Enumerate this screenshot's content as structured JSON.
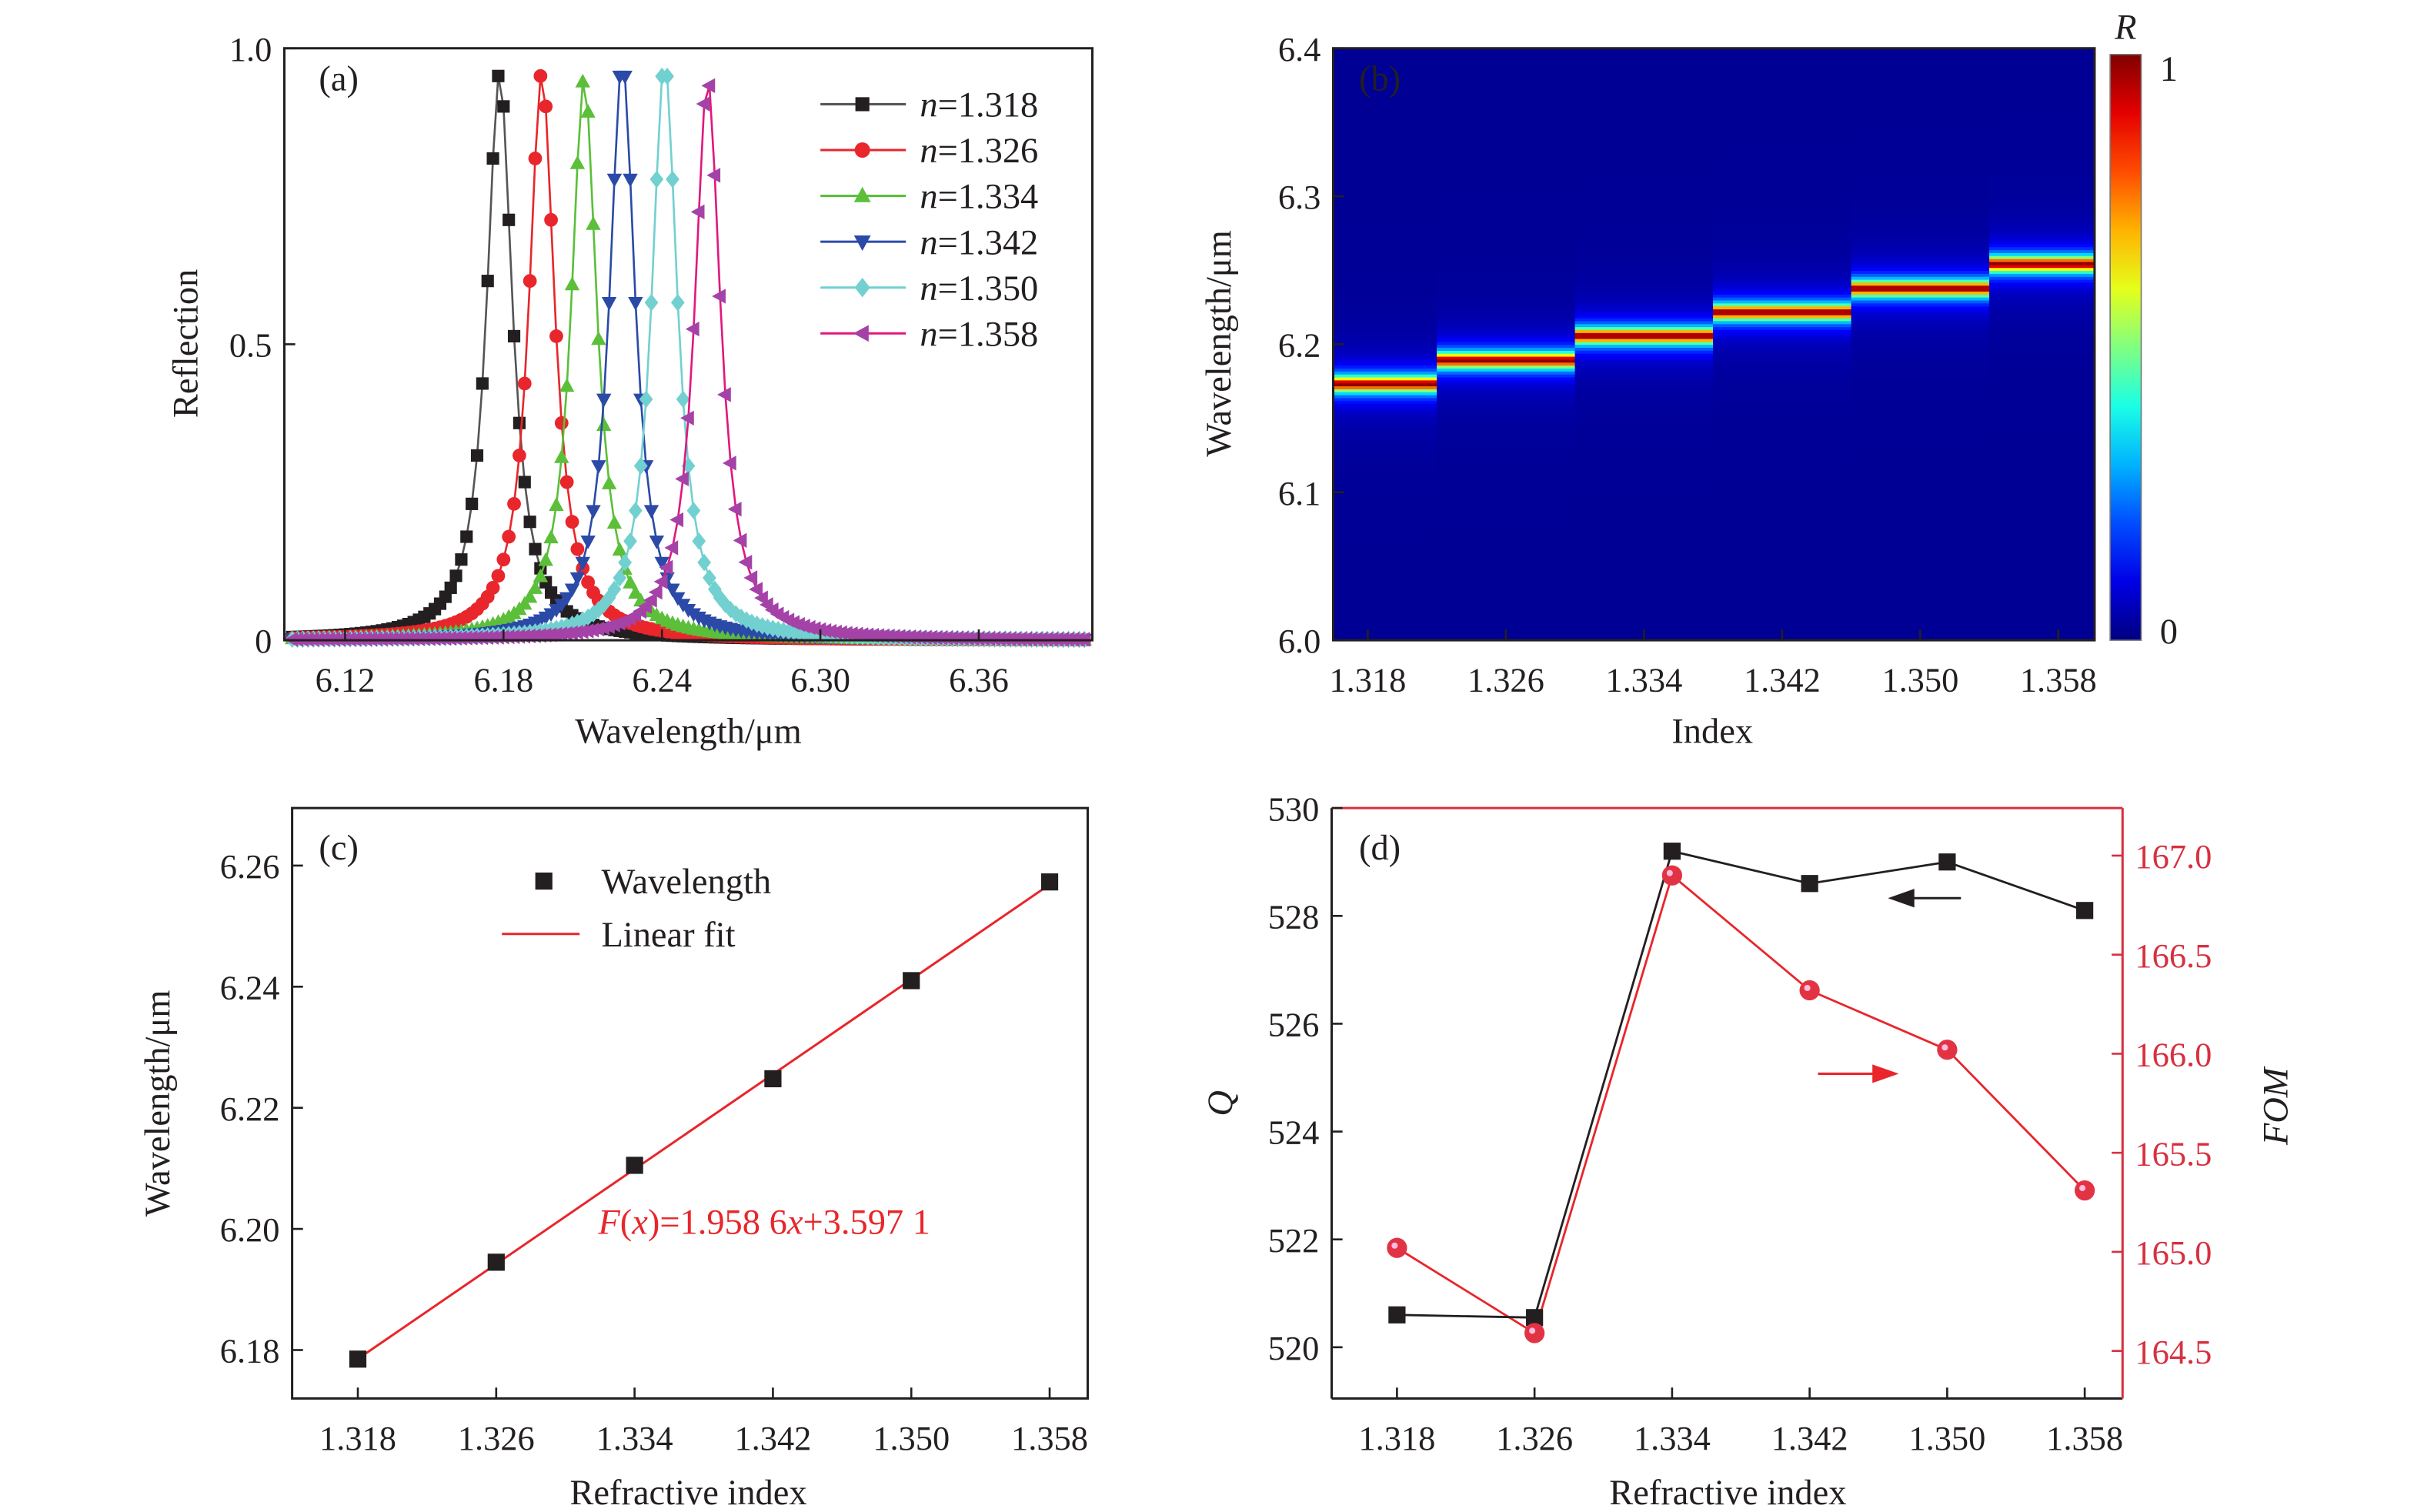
{
  "colors": {
    "black": "#231f20",
    "red": "#e8262b",
    "green": "#5bbf3a",
    "blue": "#2b4aa8",
    "cyan": "#72d0d0",
    "purple": "#a542a8",
    "magenta": "#e0187f",
    "fom_axis": "#d7303f"
  },
  "chart_data": [
    {
      "panel": "(a)",
      "type": "line",
      "xlabel": "Wavelength/μm",
      "ylabel": "Reflection",
      "xlim": [
        6.097,
        6.403
      ],
      "ylim": [
        0,
        1
      ],
      "xticks": [
        "6.12",
        "6.18",
        "6.24",
        "6.30",
        "6.36"
      ],
      "yticks": [
        "0",
        "0.5",
        "1.0"
      ],
      "legend_position": "top-right",
      "linewidth_fwhm_um": 0.0118,
      "series": [
        {
          "name_prefix": "n",
          "name_value": "=1.318",
          "peak": 6.1785,
          "peak_height": 0.96,
          "marker": "square"
        },
        {
          "name_prefix": "n",
          "name_value": "=1.326",
          "peak": 6.1945,
          "peak_height": 0.96,
          "marker": "circle"
        },
        {
          "name_prefix": "n",
          "name_value": "=1.334",
          "peak": 6.2105,
          "peak_height": 0.95,
          "marker": "triangle-up"
        },
        {
          "name_prefix": "n",
          "name_value": "=1.342",
          "peak": 6.225,
          "peak_height": 0.98,
          "marker": "triangle-down"
        },
        {
          "name_prefix": "n",
          "name_value": "=1.350",
          "peak": 6.241,
          "peak_height": 0.98,
          "marker": "diamond"
        },
        {
          "name_prefix": "n",
          "name_value": "=1.358",
          "peak": 6.2573,
          "peak_height": 0.95,
          "marker": "triangle-left"
        }
      ]
    },
    {
      "panel": "(b)",
      "type": "heatmap",
      "xlabel": "Index",
      "ylabel": "Wavelength/μm",
      "categories": [
        "1.318",
        "1.326",
        "1.334",
        "1.342",
        "1.350",
        "1.358"
      ],
      "ylim": [
        6.0,
        6.4
      ],
      "yticks": [
        "6.0",
        "6.1",
        "6.2",
        "6.3",
        "6.4"
      ],
      "peaks": [
        6.1735,
        6.1895,
        6.206,
        6.222,
        6.238,
        6.2545
      ],
      "colorbar": {
        "title": "R",
        "max_label": "1",
        "min_label": "0",
        "range": [
          0,
          1
        ]
      }
    },
    {
      "panel": "(c)",
      "type": "scatter",
      "xlabel": "Refractive index",
      "ylabel": "Wavelength/μm",
      "x": [
        1.318,
        1.326,
        1.334,
        1.342,
        1.35,
        1.358
      ],
      "y": [
        6.1785,
        6.1945,
        6.2105,
        6.2248,
        6.241,
        6.2573
      ],
      "xlim": [
        1.3142,
        1.3602
      ],
      "ylim": [
        6.172,
        6.2695
      ],
      "xticks": [
        "1.318",
        "1.326",
        "1.334",
        "1.342",
        "1.350",
        "1.358"
      ],
      "yticks": [
        "6.18",
        "6.20",
        "6.22",
        "6.24",
        "6.26"
      ],
      "legend": [
        "Wavelength",
        "Linear fit"
      ],
      "fit": {
        "slope": 1.9586,
        "intercept": 3.5971
      },
      "annotation": [
        {
          "t": "F",
          "i": true
        },
        {
          "t": "(",
          "i": false
        },
        {
          "t": "x",
          "i": true
        },
        {
          "t": ")=1.958 6",
          "i": false
        },
        {
          "t": "x",
          "i": true
        },
        {
          "t": "+3.597 1",
          "i": false
        }
      ]
    },
    {
      "panel": "(d)",
      "type": "line",
      "xlabel": "Refractive index",
      "ylabel_left": "Q",
      "ylabel_right": "FOM",
      "x": [
        1.318,
        1.326,
        1.334,
        1.342,
        1.35,
        1.358
      ],
      "xlim": [
        1.3142,
        1.3602
      ],
      "xticks": [
        "1.318",
        "1.326",
        "1.334",
        "1.342",
        "1.350",
        "1.358"
      ],
      "series": [
        {
          "name": "Q",
          "axis": "left",
          "values": [
            520.6,
            520.55,
            529.2,
            528.6,
            529.0,
            528.1
          ]
        },
        {
          "name": "FOM",
          "axis": "right",
          "values": [
            165.02,
            164.59,
            166.9,
            166.32,
            166.02,
            165.31
          ]
        }
      ],
      "ylim_left": [
        519.05,
        530
      ],
      "yticks_left": [
        "520",
        "522",
        "524",
        "526",
        "528",
        "530"
      ],
      "ylim_right": [
        164.26,
        167.24
      ],
      "yticks_right": [
        "164.5",
        "165.0",
        "165.5",
        "166.0",
        "166.5",
        "167.0"
      ]
    }
  ]
}
